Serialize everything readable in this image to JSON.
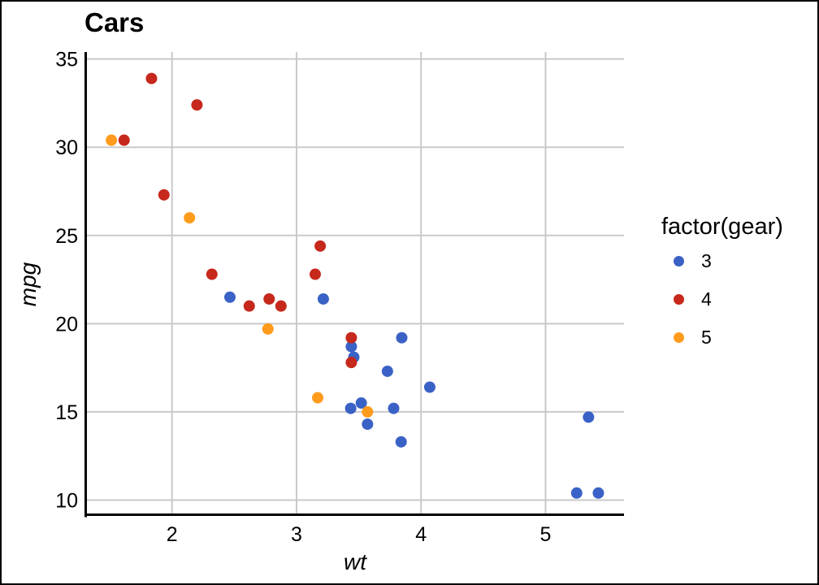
{
  "figure": {
    "background": "#ffffff",
    "border_color": "#000000"
  },
  "chart_data": {
    "type": "scatter",
    "title": "Cars",
    "xlabel": "wt",
    "ylabel": "mpg",
    "xlim": [
      1.31,
      5.63
    ],
    "ylim": [
      9.1,
      35.4
    ],
    "xticks": [
      2,
      3,
      4,
      5
    ],
    "xtick_labels": [
      "2",
      "3",
      "4",
      "5"
    ],
    "yticks": [
      10,
      15,
      20,
      25,
      30,
      35
    ],
    "ytick_labels": [
      "10",
      "15",
      "20",
      "25",
      "30",
      "35"
    ],
    "grid": true,
    "grid_color": "#c9c9c9",
    "axis_color": "#000000",
    "point_radius": 7,
    "legend": {
      "title": "factor(gear)",
      "position": "right",
      "entries": [
        {
          "label": "3",
          "color": "#3a62c6"
        },
        {
          "label": "4",
          "color": "#c6281c"
        },
        {
          "label": "5",
          "color": "#ff9b1c"
        }
      ]
    },
    "series": [
      {
        "name": "3",
        "color": "#3a62c6",
        "points": [
          [
            2.465,
            21.5
          ],
          [
            3.215,
            21.4
          ],
          [
            3.435,
            15.2
          ],
          [
            3.44,
            18.7
          ],
          [
            3.46,
            18.1
          ],
          [
            3.52,
            15.5
          ],
          [
            3.57,
            14.3
          ],
          [
            3.73,
            17.3
          ],
          [
            3.78,
            15.2
          ],
          [
            3.84,
            13.3
          ],
          [
            3.845,
            19.2
          ],
          [
            4.07,
            16.4
          ],
          [
            5.25,
            10.4
          ],
          [
            5.345,
            14.7
          ],
          [
            5.424,
            10.4
          ]
        ]
      },
      {
        "name": "4",
        "color": "#c6281c",
        "points": [
          [
            1.615,
            30.4
          ],
          [
            1.835,
            33.9
          ],
          [
            1.935,
            27.3
          ],
          [
            2.2,
            32.4
          ],
          [
            2.32,
            22.8
          ],
          [
            2.62,
            21.0
          ],
          [
            2.78,
            21.4
          ],
          [
            2.875,
            21.0
          ],
          [
            3.15,
            22.8
          ],
          [
            3.19,
            24.4
          ],
          [
            3.44,
            19.2
          ],
          [
            3.44,
            17.8
          ]
        ]
      },
      {
        "name": "5",
        "color": "#ff9b1c",
        "points": [
          [
            1.513,
            30.4
          ],
          [
            2.14,
            26.0
          ],
          [
            2.77,
            19.7
          ],
          [
            3.17,
            15.8
          ],
          [
            3.57,
            15.0
          ]
        ]
      }
    ]
  }
}
